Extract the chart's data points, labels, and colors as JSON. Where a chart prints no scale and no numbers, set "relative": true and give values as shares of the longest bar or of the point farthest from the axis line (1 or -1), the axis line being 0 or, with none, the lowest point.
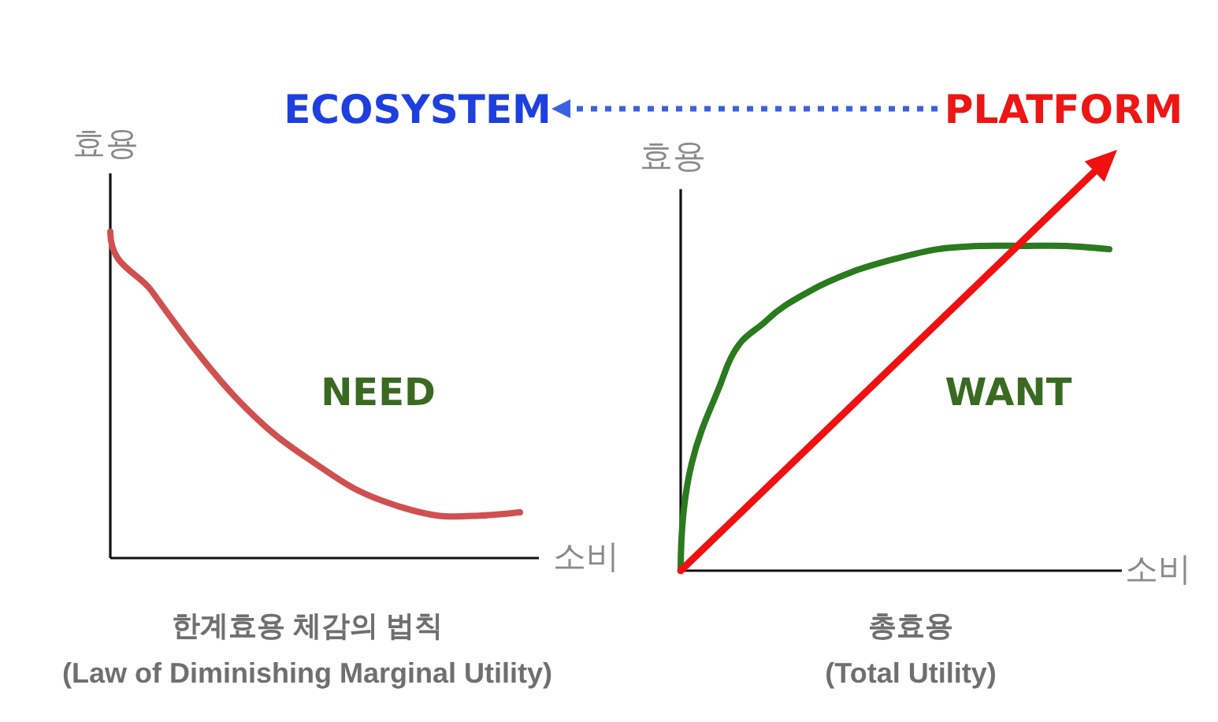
{
  "chart_data": [
    {
      "type": "line",
      "relative": true,
      "title": "한계효용 체감의 법칙",
      "subtitle": "(Law of Diminishing Marginal Utility)",
      "ylabel": "효용",
      "xlabel": "소비",
      "annotations": [
        "NEED"
      ],
      "categories": [
        null,
        null,
        null,
        null,
        null,
        null,
        null,
        null,
        null,
        null,
        null
      ],
      "series": [
        {
          "color": "#d05050",
          "values": [
            1,
            0.82,
            0.65,
            0.5,
            0.38,
            0.29,
            0.21,
            0.16,
            0.13,
            0.13,
            0.14
          ]
        }
      ]
    },
    {
      "type": "line",
      "relative": true,
      "title": "총효용",
      "subtitle": "(Total Utility)",
      "ylabel": "효용",
      "xlabel": "소비",
      "annotations": [
        "WANT",
        "ECOSYSTEM",
        "PLATFORM"
      ],
      "categories": [
        null,
        null,
        null,
        null,
        null,
        null,
        null,
        null,
        null,
        null,
        null
      ],
      "series": [
        {
          "color": "#2a7a1e",
          "values": [
            0,
            0.6,
            0.77,
            0.86,
            0.92,
            0.96,
            0.99,
            1,
            1,
            1,
            0.99
          ]
        }
      ]
    }
  ]
}
